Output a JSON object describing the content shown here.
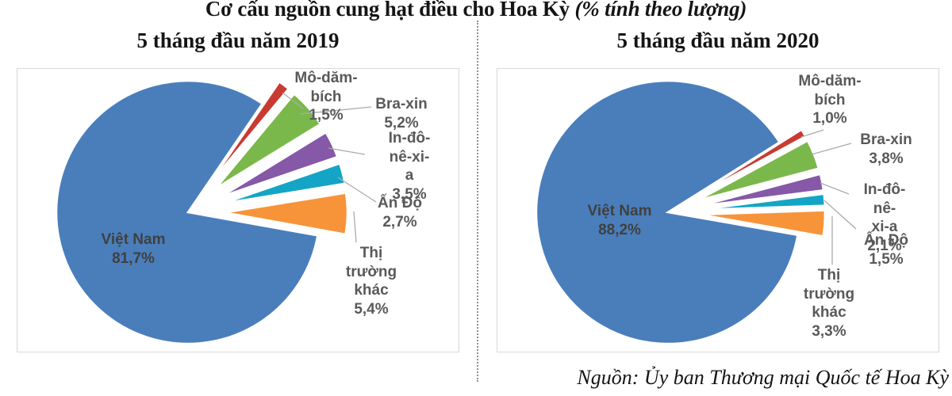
{
  "header": {
    "title_main": "Cơ cấu nguồn cung hạt điều cho Hoa Kỳ ",
    "title_note": "(% tính theo lượng)"
  },
  "footer": {
    "source": "Nguồn: Ủy ban Thương mại Quốc tế Hoa Kỳ"
  },
  "colors": {
    "viet_nam": "#4A7EBB",
    "mo_dam_bich": "#C93A31",
    "bra_xin": "#7BB84C",
    "in_do_ne_xi_a": "#8658A8",
    "an_do": "#14A5C6",
    "thi_truong_khac": "#F7943A",
    "outside_label": "#595959",
    "inside_label": "#404040",
    "leader_line": "#ABABAB",
    "box_border": "#D8D8D8"
  },
  "chart_data": [
    {
      "type": "pie",
      "title": "5 tháng đầu năm 2019",
      "unit": "%",
      "legend": "none",
      "slices": [
        {
          "id": "viet-nam",
          "label": "Việt Nam",
          "value": 81.7,
          "display": "Việt Nam\n81,7%",
          "color": "#4A7EBB"
        },
        {
          "id": "mo-dam-bich",
          "label": "Mô-dăm-bích",
          "value": 1.5,
          "display": "Mô-dăm-\nbích\n1,5%",
          "color": "#C93A31"
        },
        {
          "id": "bra-xin",
          "label": "Bra-xin",
          "value": 5.2,
          "display": "Bra-xin\n5,2%",
          "color": "#7BB84C"
        },
        {
          "id": "in-do-ne-xi-a",
          "label": "In-đô-nê-xi-a",
          "value": 3.5,
          "display": "In-đô-nê-xi-\na\n3,5%",
          "color": "#8658A8"
        },
        {
          "id": "an-do",
          "label": "Ấn Độ",
          "value": 2.7,
          "display": "Ấn Độ\n2,7%",
          "color": "#14A5C6"
        },
        {
          "id": "thi-truong-khac",
          "label": "Thị trường khác",
          "value": 5.4,
          "display": "Thị\ntrường\nkhác\n5,4%",
          "color": "#F7943A"
        }
      ]
    },
    {
      "type": "pie",
      "title": "5 tháng đầu năm 2020",
      "unit": "%",
      "legend": "none",
      "slices": [
        {
          "id": "viet-nam",
          "label": "Việt Nam",
          "value": 88.2,
          "display": "Việt Nam\n88,2%",
          "color": "#4A7EBB"
        },
        {
          "id": "mo-dam-bich",
          "label": "Mô-dăm-bích",
          "value": 1.0,
          "display": "Mô-dăm-\nbích\n1,0%",
          "color": "#C93A31"
        },
        {
          "id": "bra-xin",
          "label": "Bra-xin",
          "value": 3.8,
          "display": "Bra-xin\n3,8%",
          "color": "#7BB84C"
        },
        {
          "id": "in-do-ne-xi-a",
          "label": "In-đô-nê-xi-a",
          "value": 2.1,
          "display": "In-đô-nê-\nxi-a\n2,1%",
          "color": "#8658A8"
        },
        {
          "id": "an-do",
          "label": "Ấn Độ",
          "value": 1.5,
          "display": "Ấn Độ\n1,5%",
          "color": "#14A5C6"
        },
        {
          "id": "thi-truong-khac",
          "label": "Thị trường khác",
          "value": 3.3,
          "display": "Thị\ntrường\nkhác\n3,3%",
          "color": "#F7943A"
        }
      ]
    }
  ]
}
